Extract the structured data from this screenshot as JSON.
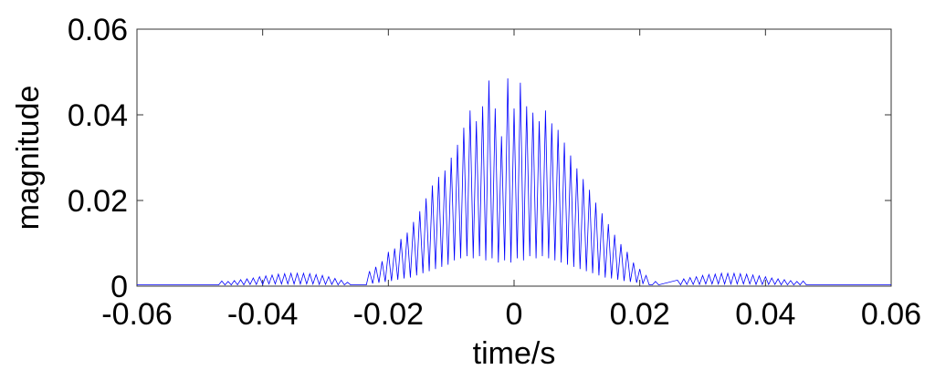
{
  "chart_data": {
    "type": "line",
    "title": "",
    "xlabel": "time/s",
    "ylabel": "magnitude",
    "xlim": [
      -0.06,
      0.06
    ],
    "ylim": [
      0,
      0.06
    ],
    "xticks": [
      "-0.06",
      "-0.04",
      "-0.02",
      "0",
      "0.02",
      "0.04",
      "0.06"
    ],
    "yticks": [
      "0",
      "0.02",
      "0.04",
      "0.06"
    ],
    "grid": false,
    "series_color": "#0000ff",
    "series": [
      {
        "x": [
          -0.06,
          -0.047,
          -0.0465,
          -0.046,
          -0.0455,
          -0.045,
          -0.0445,
          -0.044,
          -0.0435,
          -0.043,
          -0.0425,
          -0.042,
          -0.0415,
          -0.041,
          -0.0405,
          -0.04,
          -0.0395,
          -0.039,
          -0.0385,
          -0.038,
          -0.0375,
          -0.037,
          -0.0365,
          -0.036,
          -0.0355,
          -0.035,
          -0.0345,
          -0.034,
          -0.0335,
          -0.033,
          -0.0325,
          -0.032,
          -0.0315,
          -0.031,
          -0.0305,
          -0.03,
          -0.0295,
          -0.029,
          -0.0285,
          -0.028,
          -0.0275,
          -0.027,
          -0.0265,
          -0.026,
          -0.0235,
          -0.023,
          -0.0225,
          -0.022,
          -0.0215,
          -0.021,
          -0.0205,
          -0.02,
          -0.0195,
          -0.019,
          -0.0185,
          -0.018,
          -0.0175,
          -0.017,
          -0.0165,
          -0.016,
          -0.0155,
          -0.015,
          -0.0145,
          -0.014,
          -0.0135,
          -0.013,
          -0.0125,
          -0.012,
          -0.0115,
          -0.011,
          -0.0105,
          -0.01,
          -0.0095,
          -0.009,
          -0.0085,
          -0.008,
          -0.0075,
          -0.007,
          -0.0065,
          -0.006,
          -0.0055,
          -0.005,
          -0.0045,
          -0.004,
          -0.0035,
          -0.003,
          -0.0025,
          -0.002,
          -0.0015,
          -0.001,
          -0.0005,
          0,
          0.0005,
          0.001,
          0.0015,
          0.002,
          0.0025,
          0.003,
          0.0035,
          0.004,
          0.0045,
          0.005,
          0.0055,
          0.006,
          0.0065,
          0.007,
          0.0075,
          0.008,
          0.0085,
          0.009,
          0.0095,
          0.01,
          0.0105,
          0.011,
          0.0115,
          0.012,
          0.0125,
          0.013,
          0.0135,
          0.014,
          0.0145,
          0.015,
          0.0155,
          0.016,
          0.0165,
          0.017,
          0.0175,
          0.018,
          0.0185,
          0.019,
          0.0195,
          0.02,
          0.0205,
          0.021,
          0.0215,
          0.022,
          0.0225,
          0.023,
          0.026,
          0.0265,
          0.027,
          0.0275,
          0.028,
          0.0285,
          0.029,
          0.0295,
          0.03,
          0.0305,
          0.031,
          0.0315,
          0.032,
          0.0325,
          0.033,
          0.0335,
          0.034,
          0.0345,
          0.035,
          0.0355,
          0.036,
          0.0365,
          0.037,
          0.0375,
          0.038,
          0.0385,
          0.039,
          0.0395,
          0.04,
          0.0405,
          0.041,
          0.0415,
          0.042,
          0.0425,
          0.043,
          0.0435,
          0.044,
          0.0445,
          0.045,
          0.0455,
          0.046,
          0.0465,
          0.06
        ],
        "y": [
          0.0003,
          0.0003,
          0.0012,
          0.0003,
          0.0011,
          0.0003,
          0.0013,
          0.0003,
          0.0015,
          0.0003,
          0.0017,
          0.0004,
          0.0019,
          0.0004,
          0.0022,
          0.0004,
          0.0024,
          0.0005,
          0.0026,
          0.0005,
          0.0028,
          0.0005,
          0.0029,
          0.0005,
          0.003,
          0.0005,
          0.003,
          0.0005,
          0.003,
          0.0005,
          0.0029,
          0.0005,
          0.0027,
          0.0004,
          0.0025,
          0.0004,
          0.0022,
          0.0004,
          0.0018,
          0.0003,
          0.0014,
          0.0003,
          0.0009,
          0.0003,
          0.0003,
          0.0035,
          0.0006,
          0.0045,
          0.0008,
          0.0058,
          0.001,
          0.008,
          0.0012,
          0.0088,
          0.0015,
          0.011,
          0.0018,
          0.0125,
          0.002,
          0.015,
          0.0025,
          0.0175,
          0.003,
          0.0205,
          0.0035,
          0.0235,
          0.004,
          0.0255,
          0.0045,
          0.027,
          0.005,
          0.03,
          0.006,
          0.033,
          0.0065,
          0.037,
          0.007,
          0.041,
          0.0065,
          0.0385,
          0.007,
          0.042,
          0.006,
          0.048,
          0.0065,
          0.0415,
          0.0055,
          0.035,
          0.006,
          0.0485,
          0.0055,
          0.0415,
          0.0065,
          0.0475,
          0.006,
          0.042,
          0.007,
          0.0405,
          0.0065,
          0.0385,
          0.007,
          0.041,
          0.0065,
          0.038,
          0.006,
          0.0365,
          0.0055,
          0.0335,
          0.005,
          0.0305,
          0.0045,
          0.0275,
          0.004,
          0.025,
          0.0035,
          0.0225,
          0.003,
          0.0195,
          0.0025,
          0.017,
          0.002,
          0.0145,
          0.0018,
          0.012,
          0.0015,
          0.0098,
          0.0012,
          0.008,
          0.001,
          0.0055,
          0.0008,
          0.004,
          0.0006,
          0.0025,
          0.0003,
          0.0003,
          0.0011,
          0.0003,
          0.0014,
          0.0003,
          0.0017,
          0.0004,
          0.002,
          0.0004,
          0.0022,
          0.0004,
          0.0025,
          0.0005,
          0.0027,
          0.0005,
          0.0028,
          0.0005,
          0.003,
          0.0005,
          0.003,
          0.0005,
          0.003,
          0.0005,
          0.0029,
          0.0005,
          0.0028,
          0.0005,
          0.0026,
          0.0004,
          0.0024,
          0.0004,
          0.0022,
          0.0004,
          0.0019,
          0.0004,
          0.0017,
          0.0003,
          0.0015,
          0.0003,
          0.0013,
          0.0003,
          0.0011,
          0.0003,
          0.0012,
          0.0003,
          0.0003
        ]
      }
    ]
  }
}
